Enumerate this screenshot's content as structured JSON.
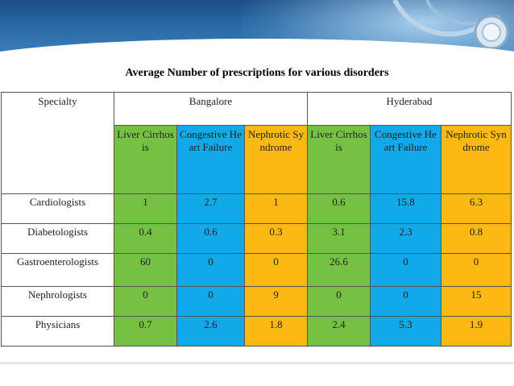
{
  "title": "Average Number of prescriptions for various disorders",
  "headers": {
    "specialty": "Specialty",
    "bangalore": "Bangalore",
    "hyderabad": "Hyderabad"
  },
  "subheaders": [
    "Liver Cirrhosis",
    "Congestive Heart Failure",
    "Nephrotic Syndrome",
    "Liver Cirrhosis",
    "Congestive Heart Failure",
    "Nephrotic Syndrome"
  ],
  "colors": {
    "liver": "#76c043",
    "heart": "#12a9e8",
    "nephrotic": "#fcb813",
    "banner": "#2b6aa6"
  },
  "rows": [
    {
      "specialty": "Cardiologists",
      "values": [
        "1",
        "2.7",
        "1",
        "0.6",
        "15.8",
        "6.3"
      ]
    },
    {
      "specialty": "Diabetologists",
      "values": [
        "0.4",
        "0.6",
        "0.3",
        "3.1",
        "2.3",
        "0.8"
      ]
    },
    {
      "specialty": "Gastroenterologists",
      "values": [
        "60",
        "0",
        "0",
        "26.6",
        "0",
        "0"
      ]
    },
    {
      "specialty": "Nephrologists",
      "values": [
        "0",
        "0",
        "9",
        "0",
        "0",
        "15"
      ]
    },
    {
      "specialty": "Physicians",
      "values": [
        "0.7",
        "2.6",
        "1.8",
        "2.4",
        "5.3",
        "1.9"
      ]
    }
  ]
}
